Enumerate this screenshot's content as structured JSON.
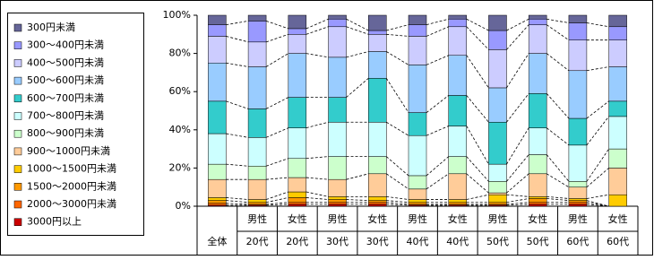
{
  "chart_data": {
    "type": "stacked_bar_100",
    "categories": [
      [
        null,
        "全体"
      ],
      [
        "男性",
        "20代"
      ],
      [
        "女性",
        "20代"
      ],
      [
        "男性",
        "30代"
      ],
      [
        "女性",
        "30代"
      ],
      [
        "男性",
        "40代"
      ],
      [
        "女性",
        "40代"
      ],
      [
        "男性",
        "50代"
      ],
      [
        "女性",
        "50代"
      ],
      [
        "男性",
        "60代"
      ],
      [
        "女性",
        "60代"
      ]
    ],
    "ylim": [
      0,
      100
    ],
    "yticks": [
      {
        "value": 0,
        "label": "0%"
      },
      {
        "value": 20,
        "label": "20%"
      },
      {
        "value": 40,
        "label": "40%"
      },
      {
        "value": 60,
        "label": "60%"
      },
      {
        "value": 80,
        "label": "80%"
      },
      {
        "value": 100,
        "label": "100%"
      }
    ],
    "series": [
      {
        "name": "3000円以上",
        "color": "#cc0000",
        "values": [
          0.5,
          0.5,
          1,
          1,
          1,
          0.5,
          0.5,
          0.5,
          1,
          1,
          0
        ]
      },
      {
        "name": "2000～3000円未満",
        "color": "#ff6600",
        "values": [
          1,
          0.5,
          1,
          1,
          1,
          0.5,
          0.5,
          0.5,
          1,
          1,
          0
        ]
      },
      {
        "name": "1500～2000円未満",
        "color": "#ff9900",
        "values": [
          1.5,
          1,
          2.5,
          1.5,
          1,
          1,
          1,
          1,
          2,
          1,
          0
        ]
      },
      {
        "name": "1000～1500円未満",
        "color": "#ffcc00",
        "values": [
          1.5,
          1.5,
          3,
          1.5,
          2,
          1.5,
          1.5,
          4,
          1,
          1,
          6
        ]
      },
      {
        "name": "900～1000円未満",
        "color": "#ffcc99",
        "values": [
          9.5,
          10.5,
          7.5,
          9,
          12,
          5.5,
          13.5,
          1,
          12,
          6,
          14
        ]
      },
      {
        "name": "800～900円未満",
        "color": "#ccffcc",
        "values": [
          8,
          7,
          10,
          12,
          9,
          7,
          9,
          6,
          10,
          3,
          10
        ]
      },
      {
        "name": "700～800円未満",
        "color": "#ccffff",
        "values": [
          16,
          15,
          16,
          18,
          18,
          21,
          16,
          9,
          14,
          19,
          17
        ]
      },
      {
        "name": "600～700円未満",
        "color": "#33cccc",
        "values": [
          17,
          15,
          16,
          13,
          23,
          12,
          16,
          22,
          18,
          14,
          8
        ]
      },
      {
        "name": "500～600円未満",
        "color": "#99ccff",
        "values": [
          20,
          22,
          23,
          21,
          14,
          25,
          21,
          18,
          21,
          25,
          18
        ]
      },
      {
        "name": "400～500円未満",
        "color": "#ccccff",
        "values": [
          14,
          13,
          10,
          16,
          9,
          15,
          15,
          20,
          15,
          16,
          14
        ]
      },
      {
        "name": "300～400円未満",
        "color": "#9999ff",
        "values": [
          6,
          11,
          3,
          4,
          2,
          6,
          4,
          10,
          3,
          9,
          7
        ]
      },
      {
        "name": "300円未満",
        "color": "#666699",
        "values": [
          5,
          3,
          7,
          2,
          8,
          5,
          2,
          8,
          2,
          4,
          6
        ]
      }
    ]
  }
}
